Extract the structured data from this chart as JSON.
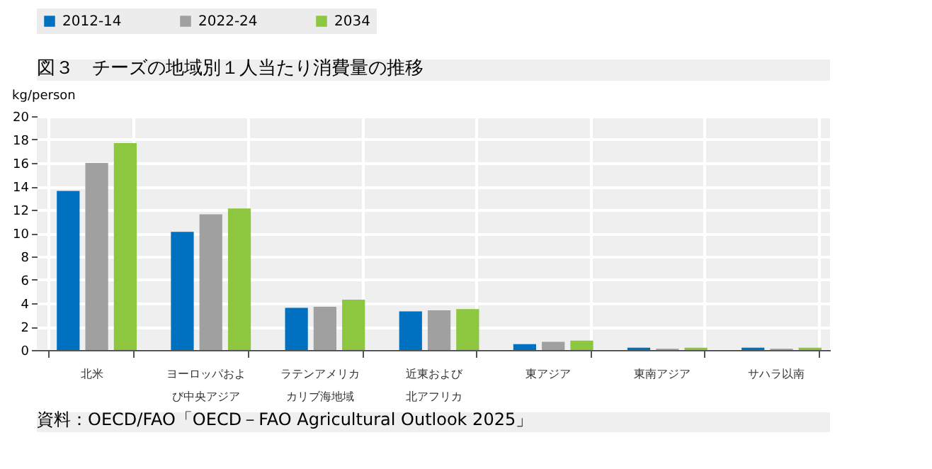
{
  "chart_data": {
    "type": "bar",
    "title": "図３　チーズの地域別１人当たり消費量の推移",
    "ylabel": "kg/person",
    "categories": [
      "北米",
      "ヨーロッパおよび中央アジア",
      "ラテンアメリカカリブ海地域",
      "近東および北アフリカ",
      "東アジア",
      "東南アジア",
      "サハラ以南"
    ],
    "series": [
      {
        "name": "2012-14",
        "color": "#0070c0",
        "values": [
          13.6,
          10.1,
          3.6,
          3.3,
          0.5,
          0.2,
          0.2
        ]
      },
      {
        "name": "2022-24",
        "color": "#a0a0a0",
        "values": [
          16.0,
          11.6,
          3.7,
          3.4,
          0.7,
          0.1,
          0.1
        ]
      },
      {
        "name": "2034",
        "color": "#8dc63f",
        "values": [
          17.7,
          12.1,
          4.3,
          3.5,
          0.8,
          0.2,
          0.2
        ]
      }
    ],
    "ylim": [
      0,
      20
    ],
    "yticks": [
      0,
      2,
      4,
      6,
      8,
      10,
      12,
      14,
      16,
      18,
      20
    ],
    "grid": true,
    "legend": "top",
    "annotations": [
      "資料：OECD/FAO「OECD－FAO Agricultural Outlook 2025」"
    ]
  }
}
